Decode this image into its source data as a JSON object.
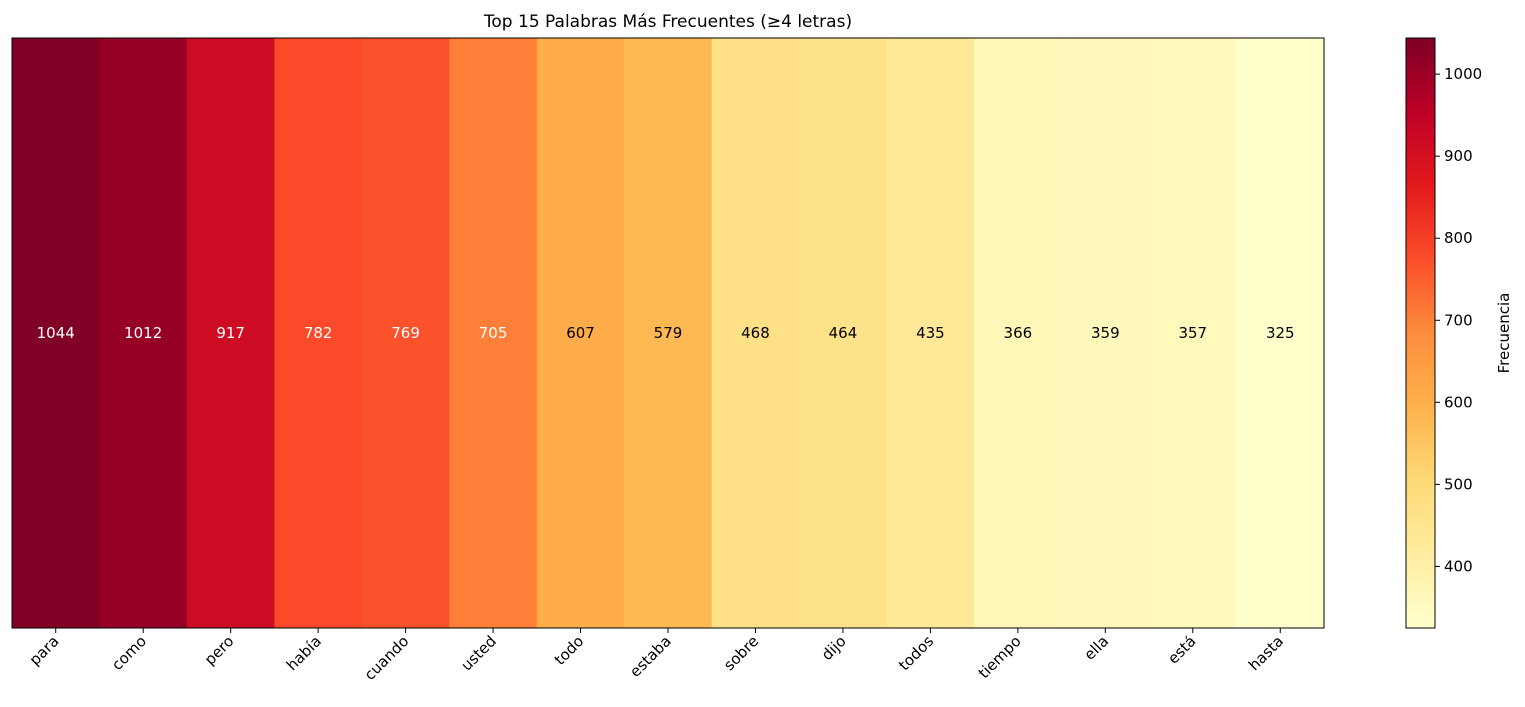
{
  "chart_data": {
    "type": "heatmap",
    "title": "Top 15 Palabras Más Frecuentes (≥4 letras)",
    "categories": [
      "para",
      "como",
      "pero",
      "había",
      "cuando",
      "usted",
      "todo",
      "estaba",
      "sobre",
      "dijo",
      "todos",
      "tiempo",
      "ella",
      "está",
      "hasta"
    ],
    "values": [
      1044,
      1012,
      917,
      782,
      769,
      705,
      607,
      579,
      468,
      464,
      435,
      366,
      359,
      357,
      325
    ],
    "colorbar": {
      "label": "Frecuencia",
      "range": [
        325,
        1044
      ],
      "ticks": [
        400,
        500,
        600,
        700,
        800,
        900,
        1000
      ],
      "colormap": [
        "#ffffcc",
        "#ffeda0",
        "#fed976",
        "#feb24c",
        "#fd8d3c",
        "#fc4e2a",
        "#e31a1c",
        "#bd0026",
        "#800026"
      ]
    },
    "grid": false
  }
}
